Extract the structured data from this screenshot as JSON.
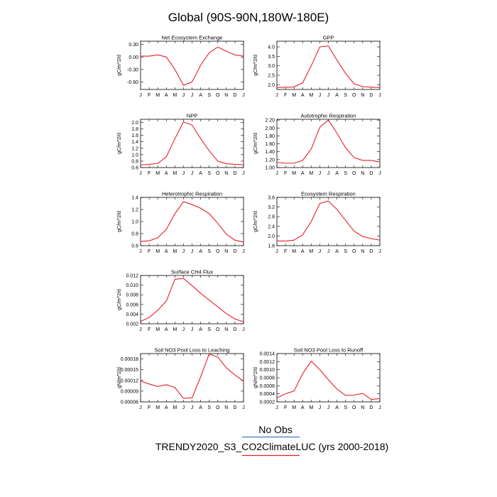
{
  "title": "Global (90S-90N,180W-180E)",
  "month_labels": [
    "J",
    "F",
    "M",
    "A",
    "M",
    "J",
    "J",
    "A",
    "S",
    "O",
    "N",
    "D",
    "J"
  ],
  "legend": {
    "obs_label": "No Obs",
    "obs_color": "#4a6fd0",
    "model_label": "TRENDY2020_S3_CO2ClimateLUC (yrs 2000-2018)",
    "model_color": "#e8202a"
  },
  "chart_data": [
    {
      "type": "line",
      "title": "Net Ecosystem Exchange",
      "ylabel": "gC/m^2/d",
      "ylim": [
        -0.78,
        0.38
      ],
      "yticks": [
        0.3,
        0.0,
        -0.3,
        -0.6
      ],
      "ytick_labels": [
        "0.30",
        "0.00",
        "-0.30",
        "-0.60"
      ],
      "x": [
        0.5,
        1.5,
        2.5,
        3.5,
        4.5,
        5.5,
        6.5,
        7.5,
        8.5,
        9.5,
        10.5,
        11.5,
        12.5
      ],
      "series": [
        {
          "values": [
            0.02,
            0.02,
            0.05,
            0.0,
            -0.3,
            -0.68,
            -0.6,
            -0.2,
            0.1,
            0.24,
            0.14,
            0.05,
            0.02
          ]
        }
      ]
    },
    {
      "type": "line",
      "title": "GPP",
      "ylabel": "gC/m^2/d",
      "ylim": [
        1.75,
        4.3
      ],
      "yticks": [
        2.0,
        2.5,
        3.0,
        3.5,
        4.0
      ],
      "ytick_labels": [
        "2.0",
        "2.5",
        "3.0",
        "3.5",
        "4.0"
      ],
      "x": [
        0.5,
        1.5,
        2.5,
        3.5,
        4.5,
        5.5,
        6.5,
        7.5,
        8.5,
        9.5,
        10.5,
        11.5,
        12.5
      ],
      "series": [
        {
          "values": [
            1.85,
            1.87,
            1.88,
            2.1,
            3.0,
            4.0,
            4.05,
            3.3,
            2.6,
            2.05,
            1.9,
            1.87,
            1.85
          ]
        }
      ]
    },
    {
      "type": "line",
      "title": "NPP",
      "ylabel": "gC/m^2/d",
      "ylim": [
        0.6,
        2.1
      ],
      "yticks": [
        0.6,
        0.8,
        1.0,
        1.2,
        1.4,
        1.6,
        1.8,
        2.0
      ],
      "ytick_labels": [
        "0.6",
        "0.8",
        "1.0",
        "1.2",
        "1.4",
        "1.6",
        "1.8",
        "2.0"
      ],
      "x": [
        0.5,
        1.5,
        2.5,
        3.5,
        4.5,
        5.5,
        6.5,
        7.5,
        8.5,
        9.5,
        10.5,
        11.5,
        12.5
      ],
      "series": [
        {
          "values": [
            0.68,
            0.7,
            0.73,
            0.93,
            1.5,
            2.02,
            1.92,
            1.5,
            1.12,
            0.8,
            0.72,
            0.7,
            0.69
          ]
        }
      ]
    },
    {
      "type": "line",
      "title": "Autotrophic Respiration",
      "ylabel": "gC/m^2/d",
      "ylim": [
        1.0,
        2.22
      ],
      "yticks": [
        1.0,
        1.2,
        1.4,
        1.6,
        1.8,
        2.0,
        2.2
      ],
      "ytick_labels": [
        "1.00",
        "1.20",
        "1.40",
        "1.60",
        "1.80",
        "2.00",
        "2.20"
      ],
      "x": [
        0.5,
        1.5,
        2.5,
        3.5,
        4.5,
        5.5,
        6.5,
        7.5,
        8.5,
        9.5,
        10.5,
        11.5,
        12.5
      ],
      "series": [
        {
          "values": [
            1.13,
            1.11,
            1.11,
            1.18,
            1.47,
            2.02,
            2.2,
            1.87,
            1.5,
            1.25,
            1.18,
            1.18,
            1.14
          ]
        }
      ]
    },
    {
      "type": "line",
      "title": "Heterotrophic Respiration",
      "ylabel": "gC/m^2/d",
      "ylim": [
        0.6,
        1.4
      ],
      "yticks": [
        0.6,
        0.8,
        1.0,
        1.2,
        1.4
      ],
      "ytick_labels": [
        "0.6",
        "0.8",
        "1.0",
        "1.2",
        "1.4"
      ],
      "x": [
        0.5,
        1.5,
        2.5,
        3.5,
        4.5,
        5.5,
        6.5,
        7.5,
        8.5,
        9.5,
        10.5,
        11.5,
        12.5
      ],
      "series": [
        {
          "values": [
            0.67,
            0.68,
            0.73,
            0.87,
            1.13,
            1.33,
            1.28,
            1.22,
            1.13,
            0.97,
            0.79,
            0.69,
            0.66
          ]
        }
      ]
    },
    {
      "type": "line",
      "title": "Ecosystem Respiration",
      "ylabel": "gC/m^2/d",
      "ylim": [
        1.6,
        3.6
      ],
      "yticks": [
        1.6,
        2.0,
        2.4,
        2.8,
        3.2,
        3.6
      ],
      "ytick_labels": [
        "1.6",
        "2.0",
        "2.4",
        "2.8",
        "3.2",
        "3.6"
      ],
      "x": [
        0.5,
        1.5,
        2.5,
        3.5,
        4.5,
        5.5,
        6.5,
        7.5,
        8.5,
        9.5,
        10.5,
        11.5,
        12.5
      ],
      "series": [
        {
          "values": [
            1.8,
            1.79,
            1.83,
            2.05,
            2.6,
            3.35,
            3.45,
            3.1,
            2.65,
            2.2,
            1.98,
            1.89,
            1.83
          ]
        }
      ]
    },
    {
      "type": "line",
      "title": "Surface CH4 Flux",
      "ylabel": "gC/m^2/d",
      "ylim": [
        0.002,
        0.012
      ],
      "yticks": [
        0.002,
        0.004,
        0.006,
        0.008,
        0.01,
        0.012
      ],
      "ytick_labels": [
        "0.002",
        "0.004",
        "0.006",
        "0.008",
        "0.010",
        "0.012"
      ],
      "x": [
        0.5,
        1.5,
        2.5,
        3.5,
        4.5,
        5.5,
        6.5,
        7.5,
        8.5,
        9.5,
        10.5,
        11.5,
        12.5
      ],
      "series": [
        {
          "values": [
            0.0025,
            0.0033,
            0.0048,
            0.0067,
            0.0112,
            0.0114,
            0.0099,
            0.0083,
            0.0069,
            0.0055,
            0.0041,
            0.003,
            0.0024
          ]
        }
      ]
    },
    {
      "type": "line",
      "title": "Soil NO3 Pool Loss to Leaching",
      "ylabel": "gN/m^2/d",
      "ylim": [
        6e-05,
        0.000195
      ],
      "yticks": [
        6e-05,
        9e-05,
        0.00012,
        0.00015,
        0.00018
      ],
      "ytick_labels": [
        "0.00006",
        "0.00009",
        "0.00012",
        "0.00015",
        "0.00018"
      ],
      "x": [
        0.5,
        1.5,
        2.5,
        3.5,
        4.5,
        5.5,
        6.5,
        7.5,
        8.5,
        9.5,
        10.5,
        11.5,
        12.5
      ],
      "series": [
        {
          "values": [
            0.000118,
            0.00011,
            0.000103,
            0.000108,
            0.0001,
            7e-05,
            7.1e-05,
            0.00013,
            0.000194,
            0.000185,
            0.000155,
            0.000135,
            0.000118
          ]
        }
      ]
    },
    {
      "type": "line",
      "title": "Soil NO3 Pool Loss to Runoff",
      "ylabel": "gN/m^2/d",
      "ylim": [
        0.0002,
        0.0014
      ],
      "yticks": [
        0.0002,
        0.0004,
        0.0006,
        0.0008,
        0.001,
        0.0012,
        0.0014
      ],
      "ytick_labels": [
        "0.0002",
        "0.0004",
        "0.0006",
        "0.0008",
        "0.0010",
        "0.0012",
        "0.0014"
      ],
      "x": [
        0.5,
        1.5,
        2.5,
        3.5,
        4.5,
        5.5,
        6.5,
        7.5,
        8.5,
        9.5,
        10.5,
        11.5,
        12.5
      ],
      "series": [
        {
          "values": [
            0.0003,
            0.0004,
            0.00047,
            0.0009,
            0.00121,
            0.001,
            0.00075,
            0.00052,
            0.00036,
            0.00037,
            0.00041,
            0.00026,
            0.00028
          ]
        }
      ]
    }
  ]
}
